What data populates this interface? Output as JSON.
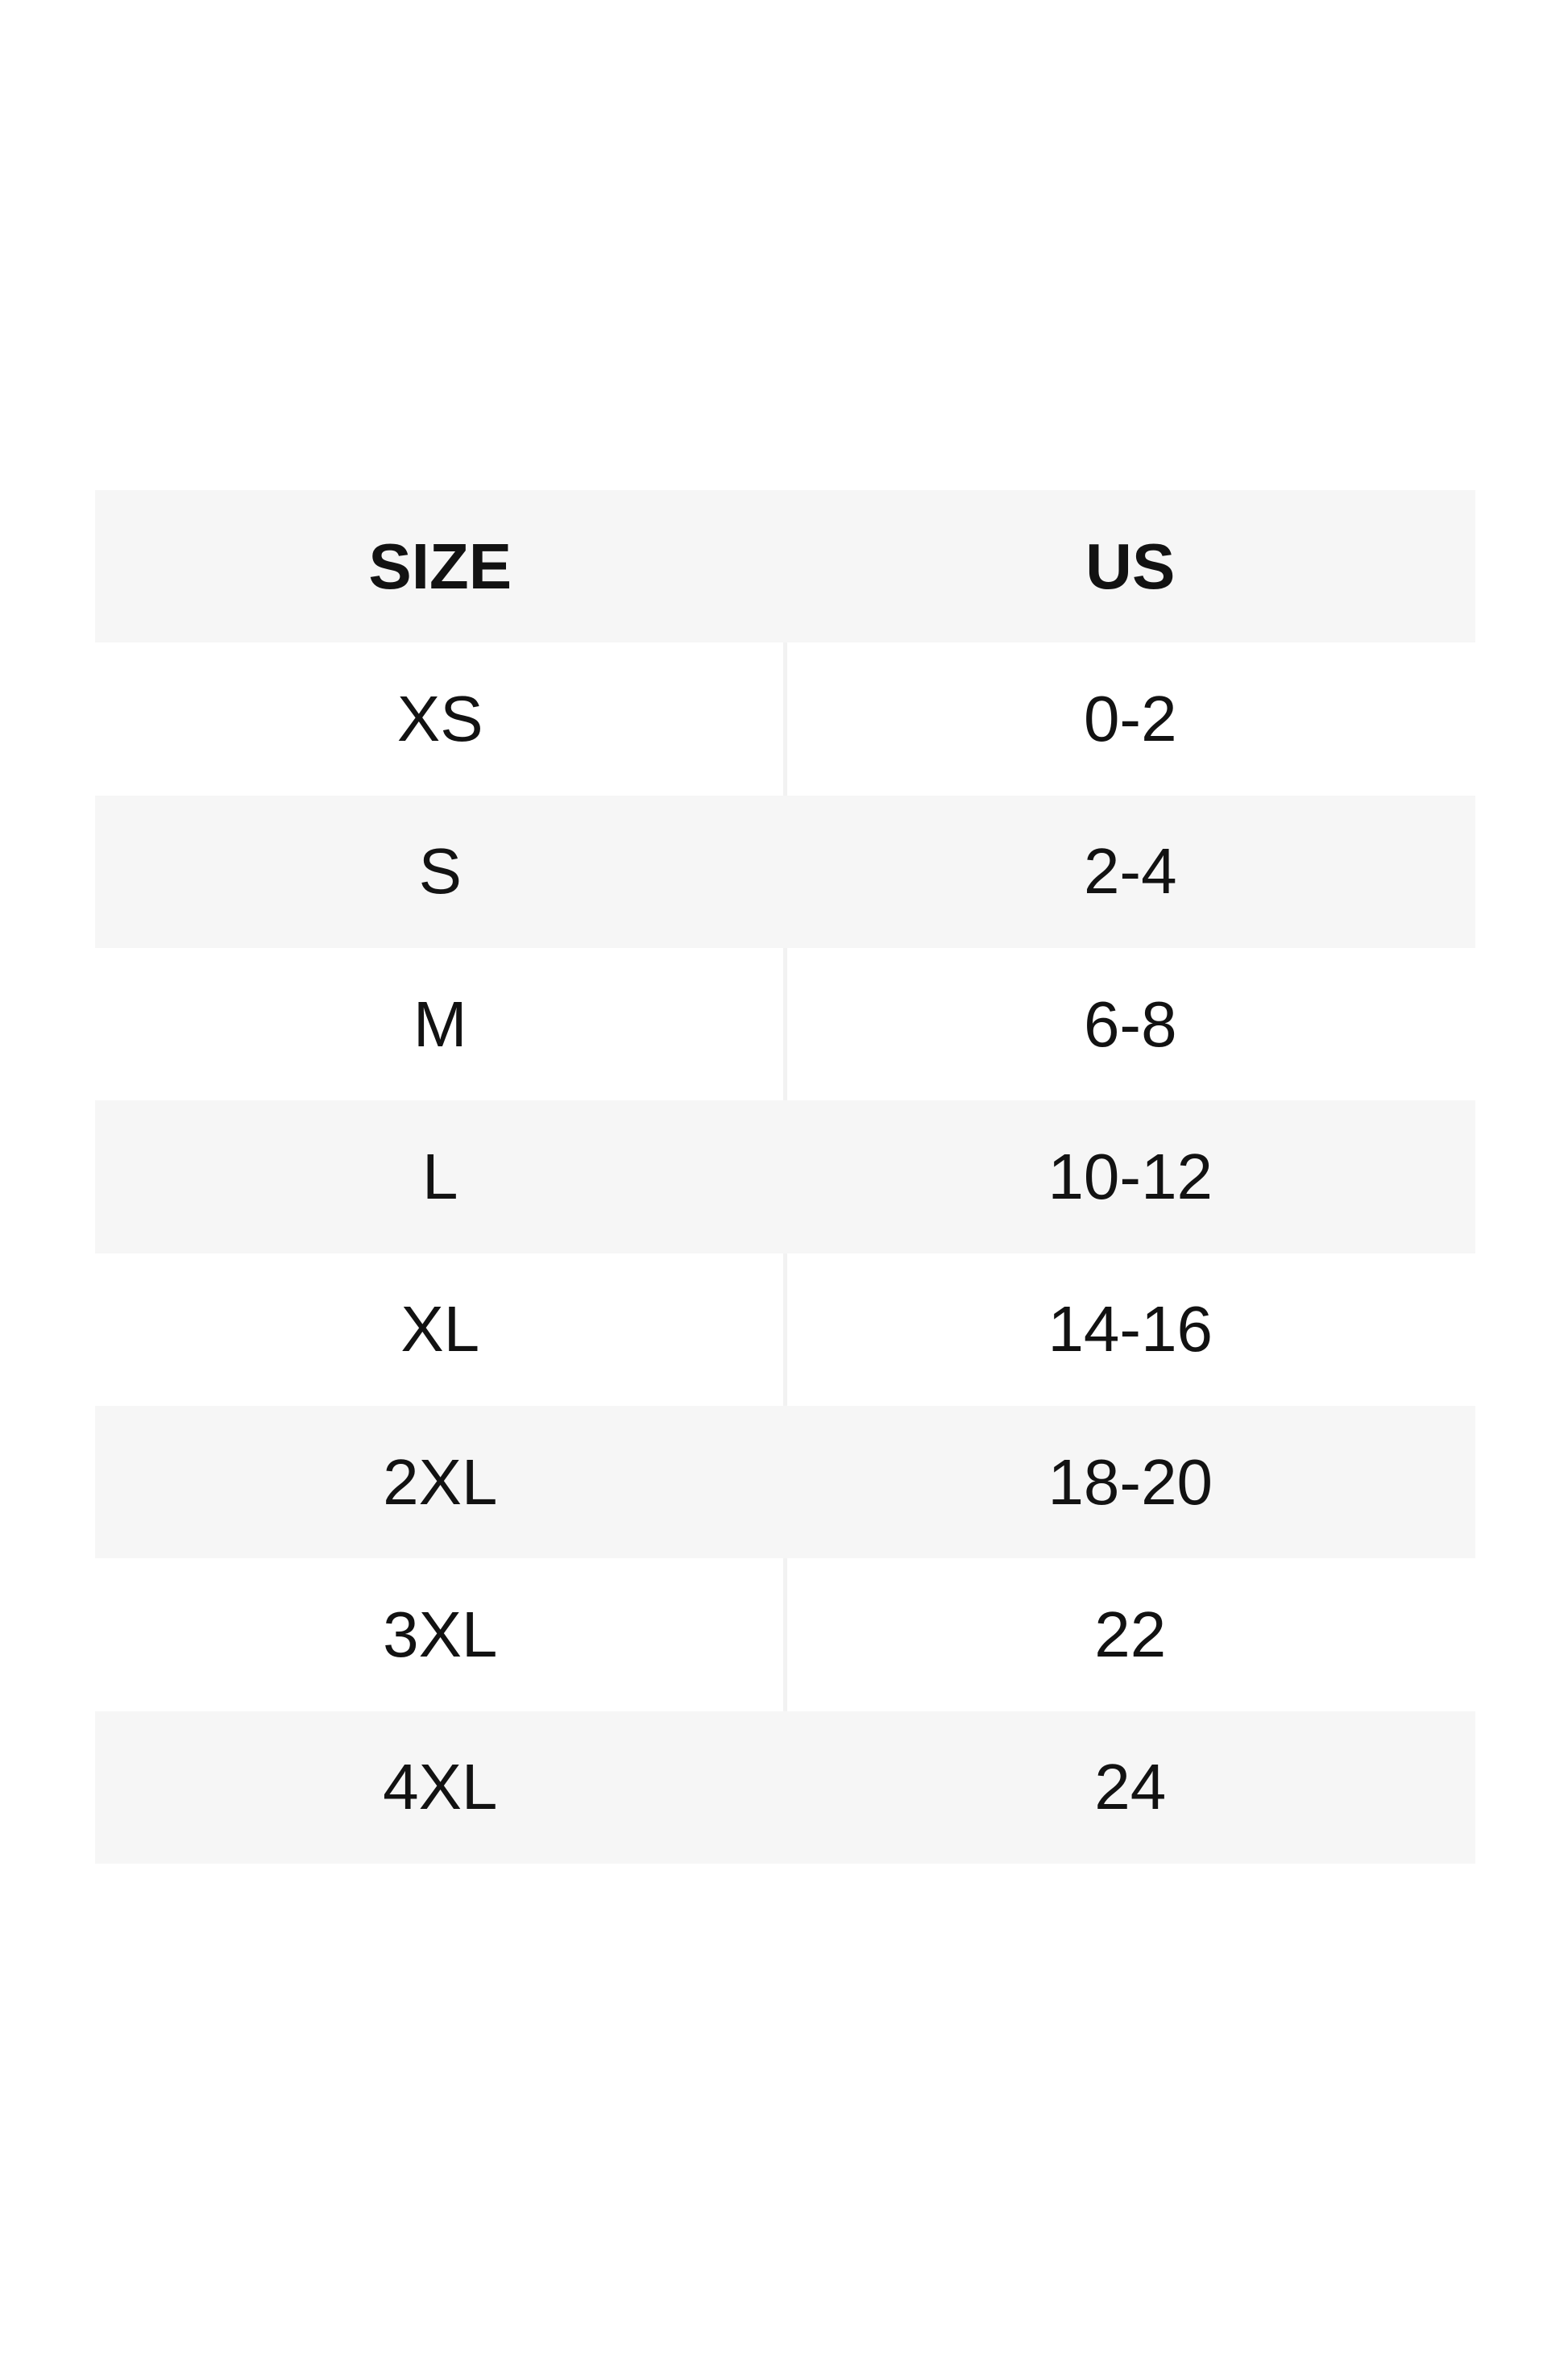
{
  "table": {
    "headers": {
      "size": "SIZE",
      "us": "US"
    },
    "rows": [
      {
        "size": "XS",
        "us": "0-2"
      },
      {
        "size": "S",
        "us": "2-4"
      },
      {
        "size": "M",
        "us": "6-8"
      },
      {
        "size": "L",
        "us": "10-12"
      },
      {
        "size": "XL",
        "us": "14-16"
      },
      {
        "size": "2XL",
        "us": "18-20"
      },
      {
        "size": "3XL",
        "us": "22"
      },
      {
        "size": "4XL",
        "us": "24"
      }
    ]
  },
  "colors": {
    "page_background": "#ffffff",
    "stripe_background": "#f6f6f6",
    "white_row_background": "#ffffff",
    "column_divider": "#f2f2f2",
    "text": "#121212"
  },
  "chart_data": {
    "type": "table",
    "columns": [
      "SIZE",
      "US"
    ],
    "rows": [
      [
        "XS",
        "0-2"
      ],
      [
        "S",
        "2-4"
      ],
      [
        "M",
        "6-8"
      ],
      [
        "L",
        "10-12"
      ],
      [
        "XL",
        "14-16"
      ],
      [
        "2XL",
        "18-20"
      ],
      [
        "3XL",
        "22"
      ],
      [
        "4XL",
        "24"
      ]
    ],
    "layout": {
      "header_background": "#f6f6f6",
      "zebra_striping": true,
      "text_align": "center"
    }
  }
}
